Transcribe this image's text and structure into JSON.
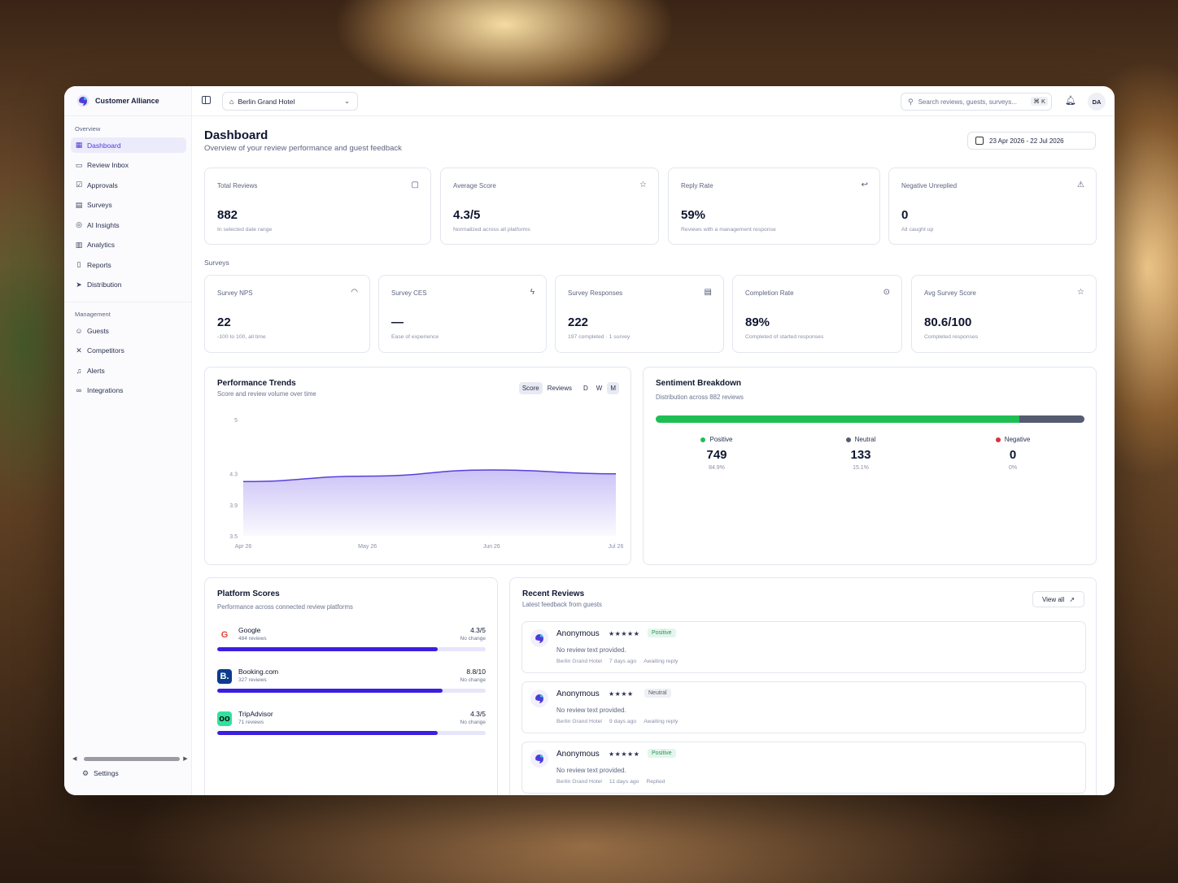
{
  "brand": {
    "name": "Customer Alliance",
    "accent": "#4f3bd9"
  },
  "sidebar": {
    "sections": [
      {
        "title": "Overview",
        "items": [
          {
            "label": "Dashboard",
            "icon": "grid-icon",
            "active": true
          },
          {
            "label": "Review Inbox",
            "icon": "inbox-icon"
          },
          {
            "label": "Approvals",
            "icon": "check-square-icon"
          },
          {
            "label": "Surveys",
            "icon": "clipboard-icon"
          },
          {
            "label": "AI Insights",
            "icon": "brain-icon"
          },
          {
            "label": "Analytics",
            "icon": "bar-chart-icon"
          },
          {
            "label": "Reports",
            "icon": "file-icon"
          },
          {
            "label": "Distribution",
            "icon": "send-icon"
          }
        ]
      },
      {
        "title": "Management",
        "items": [
          {
            "label": "Guests",
            "icon": "users-icon"
          },
          {
            "label": "Competitors",
            "icon": "swords-icon"
          },
          {
            "label": "Alerts",
            "icon": "bell-icon"
          },
          {
            "label": "Integrations",
            "icon": "link-icon"
          }
        ]
      }
    ],
    "settings_label": "Settings"
  },
  "topbar": {
    "hotel": "Berlin Grand Hotel",
    "search_placeholder": "Search reviews, guests, surveys...",
    "search_shortcut": "⌘ K",
    "avatar_initials": "DA"
  },
  "header": {
    "title": "Dashboard",
    "subtitle": "Overview of your review performance and guest feedback",
    "date_range": "23 Apr 2026 - 22 Jul 2026"
  },
  "stats": [
    {
      "label": "Total Reviews",
      "value": "882",
      "sub": "In selected date range",
      "icon": "message-square-icon"
    },
    {
      "label": "Average Score",
      "value": "4.3/5",
      "sub": "Normalized across all platforms",
      "icon": "star-icon"
    },
    {
      "label": "Reply Rate",
      "value": "59%",
      "sub": "Reviews with a management response",
      "icon": "reply-icon"
    },
    {
      "label": "Negative Unreplied",
      "value": "0",
      "sub": "All caught up",
      "icon": "alert-triangle-icon"
    }
  ],
  "surveys_label": "Surveys",
  "survey_stats": [
    {
      "label": "Survey NPS",
      "value": "22",
      "sub": "-100 to 100, all time",
      "icon": "gauge-icon"
    },
    {
      "label": "Survey CES",
      "value": "—",
      "sub": "Ease of experience",
      "icon": "zap-icon"
    },
    {
      "label": "Survey Responses",
      "value": "222",
      "sub": "197 completed · 1 survey",
      "icon": "clipboard-icon"
    },
    {
      "label": "Completion Rate",
      "value": "89%",
      "sub": "Completed of started responses",
      "icon": "target-icon"
    },
    {
      "label": "Avg Survey Score",
      "value": "80.6/100",
      "sub": "Completed responses",
      "icon": "star-icon"
    }
  ],
  "trends": {
    "title": "Performance Trends",
    "subtitle": "Score and review volume over time",
    "toggles": [
      {
        "label": "Score",
        "on": true
      },
      {
        "label": "Reviews",
        "on": false
      }
    ],
    "periods": [
      {
        "label": "D",
        "on": false
      },
      {
        "label": "W",
        "on": false
      },
      {
        "label": "M",
        "on": true
      }
    ]
  },
  "chart_data": {
    "type": "area",
    "x": [
      "Apr 26",
      "May 26",
      "Jun 26",
      "Jul 26"
    ],
    "values": [
      4.2,
      4.27,
      4.35,
      4.3
    ],
    "yticks": [
      "5",
      "4.3",
      "3.9",
      "3.5"
    ],
    "ytick_values": [
      5,
      4.3,
      3.9,
      3.5
    ],
    "ylim": [
      3.5,
      5
    ],
    "color": "#5b3fd9"
  },
  "sentiment": {
    "title": "Sentiment Breakdown",
    "subtitle": "Distribution across 882 reviews",
    "items": [
      {
        "label": "Positive",
        "value": "749",
        "pct": "84.9%",
        "fraction": 0.849,
        "color": "#1fbe53"
      },
      {
        "label": "Neutral",
        "value": "133",
        "pct": "15.1%",
        "fraction": 0.151,
        "color": "#555c72"
      },
      {
        "label": "Negative",
        "value": "0",
        "pct": "0%",
        "fraction": 0,
        "color": "#e0303a"
      }
    ]
  },
  "platforms": {
    "title": "Platform Scores",
    "subtitle": "Performance across connected review platforms",
    "items": [
      {
        "name": "Google",
        "count": "484 reviews",
        "score": "4.3/5",
        "change": "No change",
        "fraction": 0.82,
        "logo": "G",
        "logo_color": "#ea4335",
        "logo_bg": "#ffffff"
      },
      {
        "name": "Booking.com",
        "count": "327 reviews",
        "score": "8.8/10",
        "change": "No change",
        "fraction": 0.84,
        "logo": "B.",
        "logo_color": "#ffffff",
        "logo_bg": "#0b3b8c"
      },
      {
        "name": "TripAdvisor",
        "count": "71 reviews",
        "score": "4.3/5",
        "change": "No change",
        "fraction": 0.82,
        "logo": "oo",
        "logo_color": "#0a0a0a",
        "logo_bg": "#34e0a1"
      }
    ]
  },
  "recent": {
    "title": "Recent Reviews",
    "subtitle": "Latest feedback from guests",
    "view_all": "View all",
    "items": [
      {
        "name": "Anonymous",
        "stars": "★★★★★",
        "badge": "Positive",
        "badge_type": "pos",
        "text": "No review text provided.",
        "hotel": "Berlin Grand Hotel",
        "age": "7 days ago",
        "status": "Awaiting reply"
      },
      {
        "name": "Anonymous",
        "stars": "★★★★",
        "badge": "Neutral",
        "badge_type": "neu",
        "text": "No review text provided.",
        "hotel": "Berlin Grand Hotel",
        "age": "9 days ago",
        "status": "Awaiting reply"
      },
      {
        "name": "Anonymous",
        "stars": "★★★★★",
        "badge": "Positive",
        "badge_type": "pos",
        "text": "No review text provided.",
        "hotel": "Berlin Grand Hotel",
        "age": "11 days ago",
        "status": "Replied"
      }
    ]
  }
}
